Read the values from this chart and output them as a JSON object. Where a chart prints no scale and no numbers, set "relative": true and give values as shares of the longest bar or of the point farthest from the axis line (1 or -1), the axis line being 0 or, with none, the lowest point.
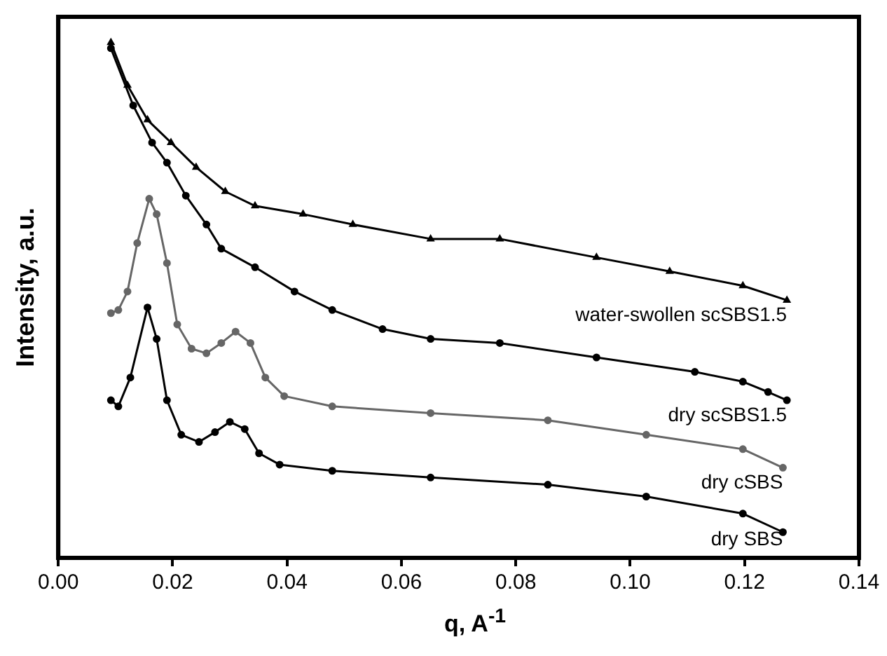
{
  "chart_data": {
    "type": "line",
    "xlabel": "q, A$^{-1}$",
    "ylabel": "Intensity, a.u.",
    "relative": true,
    "legend": false,
    "grid": false,
    "xlim": [
      0.0,
      0.14
    ],
    "xticks": [
      {
        "value": 0,
        "label": "0.00"
      },
      {
        "value": 0.02,
        "label": "0.02"
      },
      {
        "value": 0.04,
        "label": "0.04"
      },
      {
        "value": 0.06,
        "label": "0.06"
      },
      {
        "value": 0.08,
        "label": "0.08"
      },
      {
        "value": 0.1,
        "label": "0.10"
      },
      {
        "value": 0.12,
        "label": "0.12"
      },
      {
        "value": 0.14,
        "label": "0.14"
      }
    ],
    "series": [
      {
        "name": "water-swollen scSBS1.5",
        "color": "#000000",
        "marker": "triangle",
        "x": [
          0.0092,
          0.0121,
          0.0156,
          0.0197,
          0.0241,
          0.0292,
          0.0344,
          0.0428,
          0.0515,
          0.0651,
          0.0772,
          0.0941,
          0.1069,
          0.1197,
          0.1274
        ],
        "values": [
          1.0,
          0.917,
          0.85,
          0.806,
          0.758,
          0.711,
          0.683,
          0.667,
          0.647,
          0.619,
          0.619,
          0.583,
          0.556,
          0.528,
          0.5
        ]
      },
      {
        "name": "dry scSBS1.5",
        "color": "#000000",
        "marker": "circle",
        "x": [
          0.0092,
          0.0131,
          0.0164,
          0.019,
          0.0223,
          0.0259,
          0.0285,
          0.0344,
          0.0413,
          0.0479,
          0.0567,
          0.0651,
          0.0772,
          0.0941,
          0.1113,
          0.1197,
          0.1241,
          0.1274
        ],
        "values": [
          0.989,
          0.878,
          0.806,
          0.767,
          0.703,
          0.647,
          0.6,
          0.564,
          0.517,
          0.481,
          0.444,
          0.425,
          0.417,
          0.389,
          0.361,
          0.342,
          0.322,
          0.306
        ]
      },
      {
        "name": "dry cSBS",
        "color": "#666666",
        "marker": "circle",
        "x": [
          0.0092,
          0.0105,
          0.0121,
          0.0138,
          0.0159,
          0.0172,
          0.019,
          0.0208,
          0.0233,
          0.0259,
          0.0285,
          0.031,
          0.0336,
          0.0362,
          0.0395,
          0.0479,
          0.0651,
          0.0856,
          0.1028,
          0.1197,
          0.1267
        ],
        "values": [
          0.475,
          0.481,
          0.517,
          0.611,
          0.697,
          0.667,
          0.572,
          0.453,
          0.406,
          0.397,
          0.417,
          0.439,
          0.417,
          0.35,
          0.314,
          0.294,
          0.281,
          0.267,
          0.239,
          0.211,
          0.175
        ]
      },
      {
        "name": "dry SBS",
        "color": "#000000",
        "marker": "circle",
        "x": [
          0.0092,
          0.0105,
          0.0126,
          0.0156,
          0.0172,
          0.019,
          0.0215,
          0.0246,
          0.0274,
          0.03,
          0.0326,
          0.0351,
          0.0387,
          0.0479,
          0.0651,
          0.0856,
          0.1028,
          0.1197,
          0.1267
        ],
        "values": [
          0.306,
          0.294,
          0.35,
          0.486,
          0.425,
          0.306,
          0.239,
          0.225,
          0.244,
          0.264,
          0.25,
          0.203,
          0.181,
          0.169,
          0.156,
          0.142,
          0.119,
          0.086,
          0.05
        ]
      }
    ]
  }
}
